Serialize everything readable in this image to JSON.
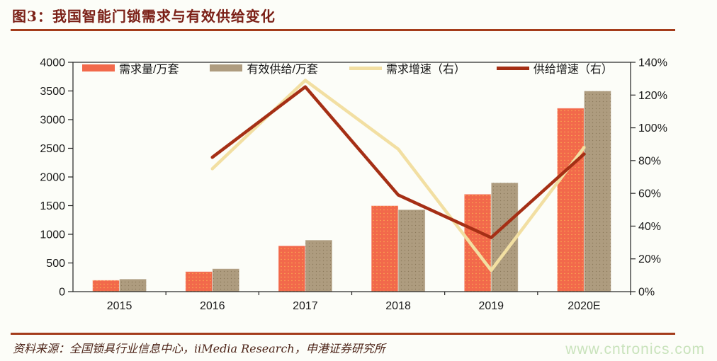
{
  "figure": {
    "title": "图3：我国智能门锁需求与有效供给变化",
    "source": "资料来源：全国锁具行业信息中心，iiMedia Research，申港证券研究所",
    "watermark": "www.cntronics.com"
  },
  "colors": {
    "title": "#7B2017",
    "rule": "#A43C1B",
    "axis": "#222222",
    "watermark": "#C9E3BC",
    "background": "#FCFDF8"
  },
  "chart_data": {
    "type": "bar+line combo",
    "title": "我国智能门锁需求与有效供给变化",
    "categories": [
      "2015",
      "2016",
      "2017",
      "2018",
      "2019",
      "2020E"
    ],
    "series": [
      {
        "key": "demand",
        "name": "需求量/万套",
        "type": "bar",
        "axis": "left",
        "color": "#F2694B",
        "values": [
          200,
          350,
          800,
          1500,
          1700,
          3200
        ]
      },
      {
        "key": "supply",
        "name": "有效供给/万套",
        "type": "bar",
        "axis": "left",
        "color": "#AE9C7F",
        "values": [
          220,
          400,
          900,
          1430,
          1900,
          3500
        ]
      },
      {
        "key": "demand_growth",
        "name": "需求增速（右）",
        "type": "line",
        "axis": "right",
        "unit": "%",
        "color": "#F2DFA2",
        "values": [
          null,
          75,
          129,
          87,
          13,
          88
        ]
      },
      {
        "key": "supply_growth",
        "name": "供给增速（右）",
        "type": "line",
        "axis": "right",
        "unit": "%",
        "color": "#A52F15",
        "values": [
          null,
          82,
          125,
          59,
          33,
          84
        ]
      }
    ],
    "left_axis": {
      "min": 0,
      "max": 4000,
      "step": 500,
      "tick_labels": [
        "0",
        "500",
        "1000",
        "1500",
        "2000",
        "2500",
        "3000",
        "3500",
        "4000"
      ]
    },
    "right_axis": {
      "min": 0,
      "max": 140,
      "step": 20,
      "tick_labels": [
        "0%",
        "20%",
        "40%",
        "60%",
        "80%",
        "100%",
        "120%",
        "140%"
      ]
    },
    "legend_position": "top-inside",
    "grid": false
  }
}
